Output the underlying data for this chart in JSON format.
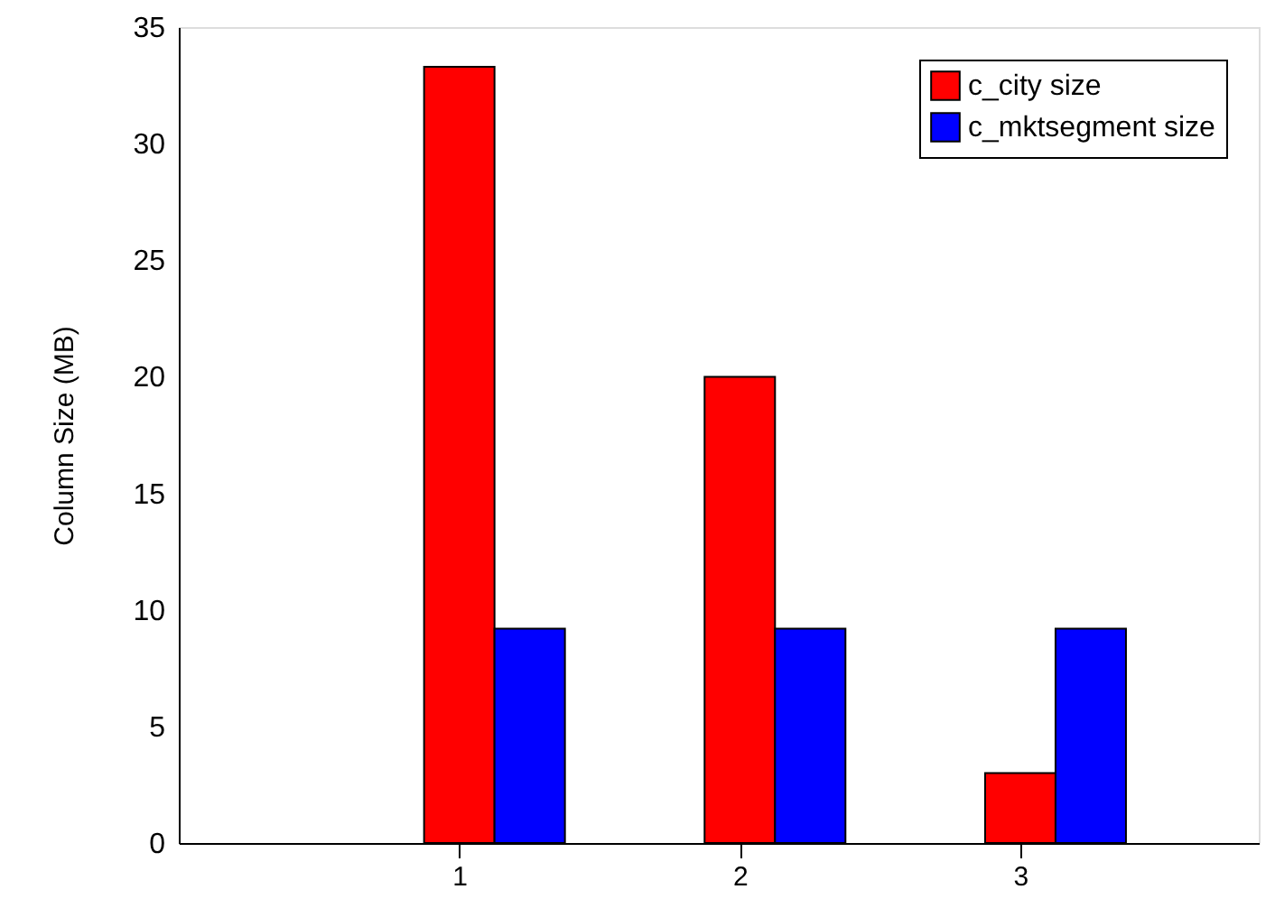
{
  "chart_data": {
    "type": "bar",
    "ylabel": "Column Size (MB)",
    "x": [
      1,
      2,
      3
    ],
    "xlim": [
      0,
      3.85
    ],
    "xticks": [
      1,
      2,
      3
    ],
    "ylim": [
      0,
      35
    ],
    "yticks": [
      0,
      5,
      10,
      15,
      20,
      25,
      30,
      35
    ],
    "grid": false,
    "legend": "top right",
    "series": [
      {
        "name": "c_city size",
        "color": "#ff0000",
        "values": [
          33.3,
          20.0,
          3.0
        ]
      },
      {
        "name": "c_mktsegment size",
        "color": "#0000ff",
        "values": [
          9.2,
          9.2,
          9.2
        ]
      }
    ]
  }
}
